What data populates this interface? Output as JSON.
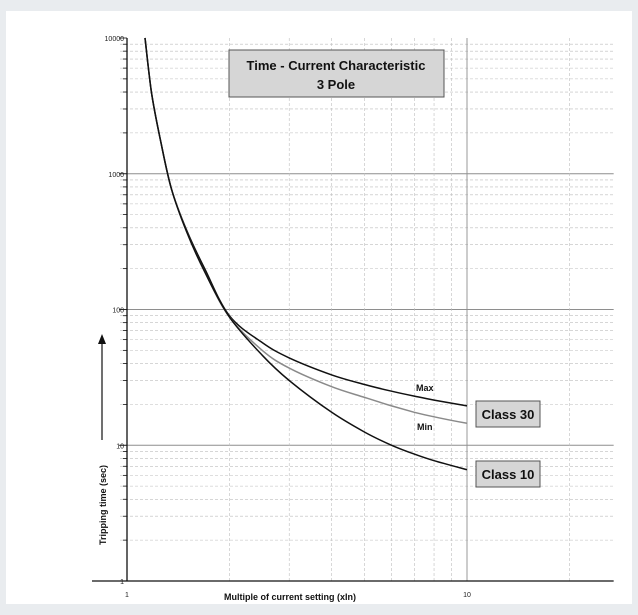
{
  "chart_data": {
    "type": "line",
    "title": "Time - Current Characteristic",
    "subtitle": "3 Pole",
    "xlabel": "Multiple of current setting (xIn)",
    "ylabel": "Tripping time (sec)",
    "x_scale": "log",
    "y_scale": "log",
    "xlim": [
      0.68,
      27
    ],
    "ylim": [
      1,
      10000
    ],
    "x_tick_labels": [
      "1",
      "10"
    ],
    "y_tick_labels": [
      "1",
      "10",
      "100",
      "1000",
      "10000"
    ],
    "grid": true,
    "series": [
      {
        "name": "Max",
        "group": "Class 30",
        "color": "#111111",
        "x": [
          1.13,
          1.18,
          1.25,
          1.35,
          1.5,
          1.7,
          2.0,
          2.5,
          3.0,
          4.0,
          5.0,
          6.0,
          7.0,
          8.0,
          10.0
        ],
        "y": [
          10000,
          4000,
          1850,
          780,
          380,
          195,
          90,
          57,
          44,
          33,
          28,
          25,
          23,
          21.5,
          19.5
        ]
      },
      {
        "name": "Min",
        "group": "Class 30",
        "color": "#8a8a8a",
        "x": [
          1.13,
          1.18,
          1.25,
          1.35,
          1.5,
          1.7,
          2.0,
          2.5,
          3.0,
          4.0,
          5.0,
          6.0,
          7.0,
          8.0,
          10.0
        ],
        "y": [
          10000,
          4000,
          1850,
          780,
          370,
          185,
          88,
          50,
          37,
          27,
          22.5,
          19.5,
          17.5,
          16.2,
          14.5
        ]
      },
      {
        "name": "Class 10",
        "color": "#111111",
        "x": [
          1.13,
          1.18,
          1.25,
          1.35,
          1.5,
          1.7,
          2.0,
          2.5,
          3.0,
          4.0,
          5.0,
          6.0,
          7.0,
          8.0,
          10.0
        ],
        "y": [
          10000,
          4000,
          1850,
          780,
          370,
          185,
          88,
          46,
          30,
          17.5,
          12.5,
          10,
          8.6,
          7.7,
          6.6
        ]
      }
    ],
    "annotations": {
      "max_label": "Max",
      "min_label": "Min",
      "class30_label": "Class 30",
      "class10_label": "Class 10"
    },
    "colors": {
      "background": "#e9ecef",
      "plot_background": "#ffffff",
      "label_box": "#d6d6d6",
      "grid_major": "#8e8e8e",
      "grid_minor": "#bdbdbd"
    }
  }
}
